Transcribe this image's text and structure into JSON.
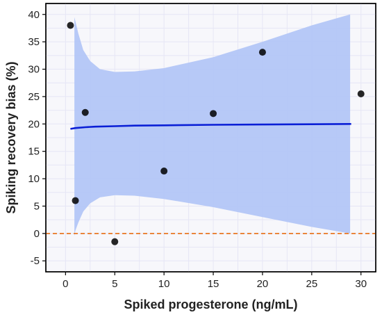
{
  "chart_data": {
    "type": "scatter",
    "title": "",
    "xlabel": "Spiked progesterone (ng/mL)",
    "ylabel": "Spiking recovery bias (%)",
    "xlim": [
      -2,
      31.5
    ],
    "ylim": [
      -7,
      42
    ],
    "x_ticks": [
      0,
      5,
      10,
      15,
      20,
      25,
      30
    ],
    "y_ticks": [
      -5,
      0,
      5,
      10,
      15,
      20,
      25,
      30,
      35,
      40
    ],
    "grid": true,
    "points": [
      {
        "x": 0.5,
        "y": 38.0
      },
      {
        "x": 1.0,
        "y": 6.0
      },
      {
        "x": 2.0,
        "y": 22.1
      },
      {
        "x": 5.0,
        "y": -1.5
      },
      {
        "x": 10.0,
        "y": 11.4
      },
      {
        "x": 15.0,
        "y": 21.9
      },
      {
        "x": 20.0,
        "y": 33.1
      },
      {
        "x": 30.0,
        "y": 25.5
      }
    ],
    "fit_line": {
      "x": [
        0.5,
        1,
        2,
        3,
        5,
        7,
        10,
        15,
        20,
        25,
        29
      ],
      "y": [
        19.1,
        19.25,
        19.4,
        19.5,
        19.6,
        19.7,
        19.75,
        19.85,
        19.9,
        19.95,
        20.0
      ]
    },
    "confidence_band": {
      "x": [
        0.9,
        1,
        1.3,
        1.8,
        2.5,
        3.5,
        5,
        7,
        10,
        15,
        20,
        25,
        28.9
      ],
      "upper": [
        39.5,
        38.8,
        36.5,
        33.5,
        31.5,
        30.0,
        29.5,
        29.6,
        30.2,
        32.2,
        35.0,
        38.0,
        40.0
      ],
      "lower": [
        -0.5,
        0.5,
        2.0,
        4.0,
        5.5,
        6.6,
        7.0,
        6.9,
        6.3,
        4.8,
        3.0,
        1.2,
        0.0
      ]
    },
    "reference_line_y": 0,
    "colors": {
      "band": "#b3c6f7",
      "fit_line": "#0a1fd6",
      "reference_line": "#e87722",
      "point": "#000000",
      "grid": "#e6e6f5",
      "panel": "#f7f7fb"
    }
  }
}
